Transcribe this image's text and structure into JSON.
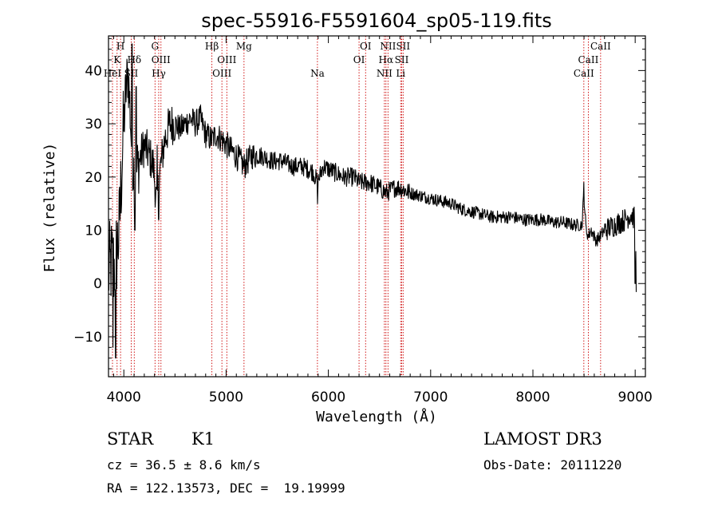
{
  "chart_data": {
    "type": "line",
    "title": "spec-55916-F5591604_sp05-119.fits",
    "xlabel": "Wavelength (Å)",
    "ylabel": "Flux (relative)",
    "xlim": [
      3850,
      9100
    ],
    "ylim": [
      -17.5,
      46.5
    ],
    "x_ticks": [
      4000,
      5000,
      6000,
      7000,
      8000,
      9000
    ],
    "y_ticks": [
      -10,
      0,
      10,
      20,
      30,
      40
    ],
    "grid": false,
    "line_color": "#000000",
    "marker_color": "#cc0000",
    "spectrum_anchors": [
      [
        3850,
        2
      ],
      [
        3880,
        4
      ],
      [
        3905,
        3
      ],
      [
        3930,
        6
      ],
      [
        3955,
        10
      ],
      [
        3980,
        22
      ],
      [
        4000,
        30
      ],
      [
        4020,
        36
      ],
      [
        4040,
        40
      ],
      [
        4060,
        33
      ],
      [
        4080,
        24
      ],
      [
        4110,
        20
      ],
      [
        4150,
        23
      ],
      [
        4200,
        26
      ],
      [
        4250,
        24
      ],
      [
        4290,
        22
      ],
      [
        4320,
        15
      ],
      [
        4360,
        22
      ],
      [
        4400,
        27
      ],
      [
        4450,
        30
      ],
      [
        4500,
        30
      ],
      [
        4550,
        29
      ],
      [
        4600,
        30
      ],
      [
        4650,
        31
      ],
      [
        4700,
        30
      ],
      [
        4750,
        31
      ],
      [
        4800,
        28
      ],
      [
        4861,
        27
      ],
      [
        4900,
        28
      ],
      [
        4960,
        27
      ],
      [
        5007,
        26
      ],
      [
        5050,
        25
      ],
      [
        5100,
        24
      ],
      [
        5175,
        22
      ],
      [
        5250,
        24
      ],
      [
        5350,
        24
      ],
      [
        5450,
        23
      ],
      [
        5550,
        23
      ],
      [
        5650,
        22
      ],
      [
        5750,
        22
      ],
      [
        5850,
        21
      ],
      [
        5893,
        19
      ],
      [
        5950,
        22
      ],
      [
        6050,
        21
      ],
      [
        6150,
        20
      ],
      [
        6250,
        20
      ],
      [
        6300,
        19
      ],
      [
        6400,
        19
      ],
      [
        6500,
        18
      ],
      [
        6563,
        17
      ],
      [
        6650,
        18
      ],
      [
        6700,
        18
      ],
      [
        6800,
        17
      ],
      [
        6900,
        16.5
      ],
      [
        7000,
        16
      ],
      [
        7100,
        15.5
      ],
      [
        7200,
        15
      ],
      [
        7300,
        14
      ],
      [
        7400,
        13.5
      ],
      [
        7500,
        13
      ],
      [
        7600,
        12.5
      ],
      [
        7700,
        12.5
      ],
      [
        7800,
        12.5
      ],
      [
        7900,
        12
      ],
      [
        8000,
        12
      ],
      [
        8100,
        12
      ],
      [
        8200,
        11.5
      ],
      [
        8300,
        11.5
      ],
      [
        8400,
        11
      ],
      [
        8480,
        11
      ],
      [
        8498,
        17
      ],
      [
        8520,
        10
      ],
      [
        8542,
        9
      ],
      [
        8570,
        10
      ],
      [
        8620,
        8
      ],
      [
        8662,
        9
      ],
      [
        8700,
        10
      ],
      [
        8800,
        11
      ],
      [
        8900,
        12
      ],
      [
        8960,
        13
      ],
      [
        9000,
        12
      ],
      [
        9010,
        0
      ]
    ],
    "spike_features": [
      [
        4080,
        45
      ],
      [
        4120,
        37
      ],
      [
        4108,
        10
      ],
      [
        4340,
        12
      ],
      [
        4325,
        26
      ],
      [
        5893,
        15
      ],
      [
        8498,
        19
      ],
      [
        9000,
        0
      ],
      [
        3920,
        -14
      ],
      [
        3895,
        -12
      ]
    ],
    "line_markers": [
      {
        "name": "K",
        "wavelength": 3934,
        "row": 2
      },
      {
        "name": "H",
        "wavelength": 3968,
        "row": 1
      },
      {
        "name": "HeI",
        "wavelength": 3889,
        "row": 3
      },
      {
        "name": "SII",
        "wavelength": 4072,
        "row": 3
      },
      {
        "name": "Hδ",
        "wavelength": 4102,
        "row": 2
      },
      {
        "name": "G",
        "wavelength": 4305,
        "row": 1
      },
      {
        "name": "OIII",
        "wavelength": 4363,
        "row": 2
      },
      {
        "name": "Hγ",
        "wavelength": 4341,
        "row": 3
      },
      {
        "name": "Hβ",
        "wavelength": 4861,
        "row": 1
      },
      {
        "name": "OIII",
        "wavelength": 5007,
        "row": 2
      },
      {
        "name": "OIII",
        "wavelength": 4959,
        "row": 3
      },
      {
        "name": "Mg",
        "wavelength": 5175,
        "row": 1
      },
      {
        "name": "Na",
        "wavelength": 5893,
        "row": 3
      },
      {
        "name": "OI",
        "wavelength": 6364,
        "row": 1
      },
      {
        "name": "OI",
        "wavelength": 6300,
        "row": 2
      },
      {
        "name": "NII",
        "wavelength": 6583,
        "row": 1
      },
      {
        "name": "Hα",
        "wavelength": 6563,
        "row": 2
      },
      {
        "name": "NII",
        "wavelength": 6548,
        "row": 3
      },
      {
        "name": "SII",
        "wavelength": 6731,
        "row": 1
      },
      {
        "name": "SII",
        "wavelength": 6717,
        "row": 2
      },
      {
        "name": "Li",
        "wavelength": 6707,
        "row": 3
      },
      {
        "name": "CaII",
        "wavelength": 8662,
        "row": 1
      },
      {
        "name": "CaII",
        "wavelength": 8542,
        "row": 2
      },
      {
        "name": "CaII",
        "wavelength": 8498,
        "row": 3
      }
    ]
  },
  "info": {
    "class": "STAR",
    "subclass": "K1",
    "survey": "LAMOST DR3",
    "redshift": "cz = 36.5 ± 8.6 km/s",
    "obs_date": "Obs-Date: 20111220",
    "coords": "RA = 122.13573, DEC =  19.19999"
  }
}
